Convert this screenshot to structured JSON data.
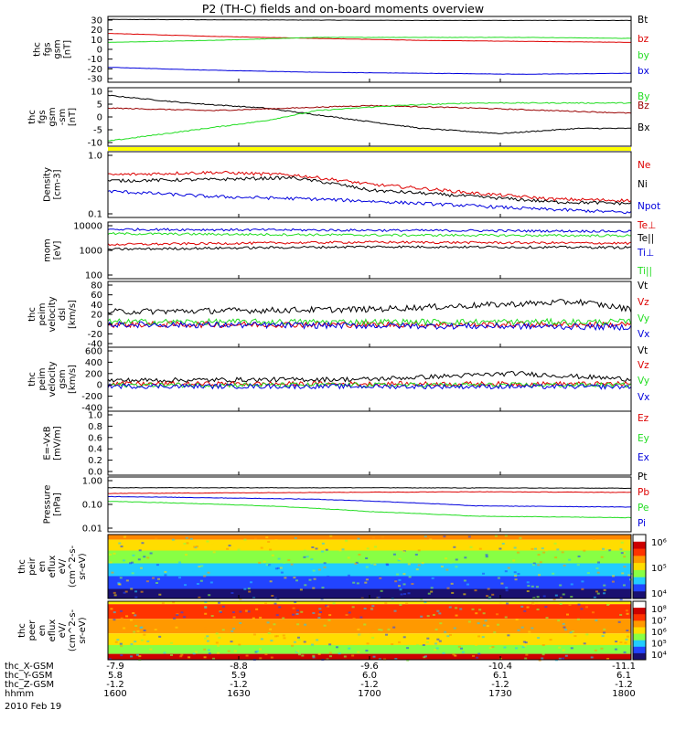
{
  "title": "P2 (TH-C) fields and on-board moments overview",
  "colors": {
    "black": "#000000",
    "red": "#dd0000",
    "green": "#22dd22",
    "blue": "#0000dd",
    "yellow": "#ffff00",
    "darkred": "#990000"
  },
  "chart_data": {
    "type": "line",
    "x_time_labels": [
      "1600",
      "1630",
      "1700",
      "1730",
      "1800"
    ],
    "panels": [
      {
        "id": "p1",
        "ylabel": [
          "thc",
          "fgs",
          "gsm",
          "[nT]"
        ],
        "yticks": [
          "30",
          "20",
          "10",
          "0",
          "-10",
          "-20",
          "-30"
        ],
        "ylim": [
          -33,
          33
        ],
        "legend": [
          {
            "text": "Bt",
            "color": "black"
          },
          {
            "text": "bz",
            "color": "red"
          },
          {
            "text": "by",
            "color": "green"
          },
          {
            "text": "bx",
            "color": "blue"
          }
        ],
        "series": [
          {
            "name": "Bt",
            "color": "black",
            "approx": [
              [
                0,
                30
              ],
              [
                0.3,
                29.5
              ],
              [
                0.6,
                29
              ],
              [
                1,
                29
              ]
            ]
          },
          {
            "name": "bz",
            "color": "red",
            "approx": [
              [
                0,
                16
              ],
              [
                0.2,
                13
              ],
              [
                0.4,
                11
              ],
              [
                0.6,
                9
              ],
              [
                0.8,
                8
              ],
              [
                1,
                7
              ]
            ]
          },
          {
            "name": "by",
            "color": "green",
            "approx": [
              [
                0,
                7
              ],
              [
                0.2,
                9
              ],
              [
                0.4,
                12
              ],
              [
                0.6,
                12
              ],
              [
                0.8,
                12
              ],
              [
                1,
                11
              ]
            ]
          },
          {
            "name": "bx",
            "color": "blue",
            "approx": [
              [
                0,
                -18
              ],
              [
                0.2,
                -21
              ],
              [
                0.4,
                -23
              ],
              [
                0.6,
                -24
              ],
              [
                0.8,
                -25
              ],
              [
                1,
                -24
              ]
            ]
          }
        ]
      },
      {
        "id": "p2",
        "ylabel": [
          "thc",
          "fgs",
          "gsm",
          "-sm",
          "[nT]"
        ],
        "yticks": [
          "10",
          "5",
          "0",
          "-5",
          "-10"
        ],
        "ylim": [
          -13,
          10
        ],
        "legend": [
          {
            "text": "By",
            "color": "green"
          },
          {
            "text": "Bz",
            "color": "darkred"
          },
          {
            "text": "Bx",
            "color": "black"
          }
        ],
        "series": [
          {
            "name": "Bx",
            "color": "black",
            "approx": [
              [
                0,
                7
              ],
              [
                0.15,
                4
              ],
              [
                0.3,
                2
              ],
              [
                0.45,
                -2
              ],
              [
                0.6,
                -6
              ],
              [
                0.75,
                -8
              ],
              [
                0.9,
                -6
              ],
              [
                1,
                -6
              ]
            ]
          },
          {
            "name": "Bz",
            "color": "darkred",
            "approx": [
              [
                0,
                2
              ],
              [
                0.2,
                1
              ],
              [
                0.35,
                2
              ],
              [
                0.5,
                3
              ],
              [
                0.7,
                2
              ],
              [
                0.85,
                1
              ],
              [
                1,
                0
              ]
            ]
          },
          {
            "name": "By",
            "color": "green",
            "approx": [
              [
                0,
                -11
              ],
              [
                0.15,
                -7
              ],
              [
                0.3,
                -3
              ],
              [
                0.4,
                1
              ],
              [
                0.55,
                3
              ],
              [
                0.7,
                4
              ],
              [
                0.85,
                4
              ],
              [
                1,
                4
              ]
            ]
          }
        ]
      },
      {
        "id": "p3",
        "ylabel": [
          "Density",
          "[cm-3]"
        ],
        "yticks": [
          "1.0",
          "0.1"
        ],
        "ylim": [
          0.1,
          1.2
        ],
        "scale": "log",
        "legend": [
          {
            "text": "Ne",
            "color": "red"
          },
          {
            "text": "Ni",
            "color": "black"
          },
          {
            "text": "Npot",
            "color": "blue"
          }
        ],
        "series": [
          {
            "name": "Ne",
            "color": "red",
            "approx": [
              [
                0,
                0.5
              ],
              [
                0.2,
                0.55
              ],
              [
                0.35,
                0.5
              ],
              [
                0.5,
                0.35
              ],
              [
                0.7,
                0.25
              ],
              [
                0.85,
                0.2
              ],
              [
                1,
                0.19
              ]
            ]
          },
          {
            "name": "Ni",
            "color": "black",
            "approx": [
              [
                0,
                0.4
              ],
              [
                0.2,
                0.42
              ],
              [
                0.35,
                0.45
              ],
              [
                0.5,
                0.28
              ],
              [
                0.7,
                0.22
              ],
              [
                0.85,
                0.18
              ],
              [
                1,
                0.17
              ]
            ]
          },
          {
            "name": "Npot",
            "color": "blue",
            "approx": [
              [
                0,
                0.27
              ],
              [
                0.2,
                0.22
              ],
              [
                0.4,
                0.2
              ],
              [
                0.6,
                0.17
              ],
              [
                0.8,
                0.14
              ],
              [
                1,
                0.12
              ]
            ]
          }
        ]
      },
      {
        "id": "p4",
        "ylabel": [
          "mom",
          "[eV]"
        ],
        "yticks": [
          "10000",
          "1000",
          "100"
        ],
        "ylim": [
          100,
          12000
        ],
        "scale": "log",
        "legend": [
          {
            "text": "Te⊥",
            "color": "red"
          },
          {
            "text": "Te||",
            "color": "black"
          },
          {
            "text": "Ti⊥",
            "color": "blue"
          },
          {
            "text": "Ti||",
            "color": "green"
          }
        ],
        "series": [
          {
            "name": "Ti⊥",
            "color": "blue",
            "approx": [
              [
                0,
                6500
              ],
              [
                0.5,
                6000
              ],
              [
                1,
                5500
              ]
            ]
          },
          {
            "name": "Ti||",
            "color": "green",
            "approx": [
              [
                0,
                4500
              ],
              [
                0.5,
                4000
              ],
              [
                1,
                3800
              ]
            ]
          },
          {
            "name": "Te⊥",
            "color": "red",
            "approx": [
              [
                0,
                1800
              ],
              [
                0.5,
                2200
              ],
              [
                1,
                2000
              ]
            ]
          },
          {
            "name": "Te||",
            "color": "black",
            "approx": [
              [
                0,
                1200
              ],
              [
                0.5,
                1500
              ],
              [
                1,
                1400
              ]
            ]
          }
        ]
      },
      {
        "id": "p5",
        "ylabel": [
          "thc",
          "peim",
          "velocity",
          "dsl",
          "[km/s]"
        ],
        "yticks": [
          "80",
          "60",
          "40",
          "20",
          "0",
          "-20",
          "-40"
        ],
        "ylim": [
          -45,
          85
        ],
        "legend": [
          {
            "text": "Vt",
            "color": "black"
          },
          {
            "text": "Vz",
            "color": "red"
          },
          {
            "text": "Vy",
            "color": "green"
          },
          {
            "text": "Vx",
            "color": "blue"
          }
        ],
        "series": [
          {
            "name": "Vt",
            "color": "black",
            "approx": [
              [
                0,
                25
              ],
              [
                0.5,
                30
              ],
              [
                0.9,
                45
              ],
              [
                1,
                30
              ]
            ]
          },
          {
            "name": "Vz",
            "color": "red",
            "approx": [
              [
                0,
                0
              ],
              [
                1,
                0
              ]
            ]
          },
          {
            "name": "Vy",
            "color": "green",
            "approx": [
              [
                0,
                5
              ],
              [
                1,
                5
              ]
            ]
          },
          {
            "name": "Vx",
            "color": "blue",
            "approx": [
              [
                0,
                0
              ],
              [
                1,
                -5
              ]
            ]
          }
        ]
      },
      {
        "id": "p6",
        "ylabel": [
          "thc",
          "peim",
          "velocity",
          "gsm",
          "[km/s]"
        ],
        "yticks": [
          "600",
          "400",
          "200",
          "0",
          "-200",
          "-400"
        ],
        "ylim": [
          -450,
          650
        ],
        "legend": [
          {
            "text": "Vt",
            "color": "black"
          },
          {
            "text": "Vz",
            "color": "red"
          },
          {
            "text": "Vy",
            "color": "green"
          },
          {
            "text": "Vx",
            "color": "blue"
          }
        ],
        "series": [
          {
            "name": "Vt",
            "color": "black",
            "approx": [
              [
                0,
                80
              ],
              [
                0.5,
                100
              ],
              [
                0.78,
                200
              ],
              [
                1,
                100
              ]
            ]
          },
          {
            "name": "Vz",
            "color": "red",
            "approx": [
              [
                0,
                20
              ],
              [
                1,
                20
              ]
            ]
          },
          {
            "name": "Vy",
            "color": "green",
            "approx": [
              [
                0,
                0
              ],
              [
                1,
                0
              ]
            ]
          },
          {
            "name": "Vx",
            "color": "blue",
            "approx": [
              [
                0,
                -20
              ],
              [
                1,
                -30
              ]
            ]
          }
        ]
      },
      {
        "id": "p7",
        "ylabel": [
          "E=-VxB",
          "[mV/m]"
        ],
        "yticks": [
          "1.0",
          "0.8",
          "0.6",
          "0.4",
          "0.2",
          "0.0"
        ],
        "ylim": [
          0,
          1
        ],
        "legend": [
          {
            "text": "Ez",
            "color": "red"
          },
          {
            "text": "Ey",
            "color": "green"
          },
          {
            "text": "Ex",
            "color": "blue"
          }
        ],
        "series": []
      },
      {
        "id": "p8",
        "ylabel": [
          "Pressure",
          "[nPa]"
        ],
        "yticks": [
          "1.00",
          "0.10",
          "0.01"
        ],
        "ylim": [
          0.01,
          1.3
        ],
        "scale": "log",
        "legend": [
          {
            "text": "Pt",
            "color": "black"
          },
          {
            "text": "Pb",
            "color": "red"
          },
          {
            "text": "Pe",
            "color": "green"
          },
          {
            "text": "Pi",
            "color": "blue"
          }
        ],
        "series": [
          {
            "name": "Pt",
            "color": "black",
            "approx": [
              [
                0,
                0.5
              ],
              [
                0.5,
                0.5
              ],
              [
                1,
                0.48
              ]
            ]
          },
          {
            "name": "Pb",
            "color": "red",
            "approx": [
              [
                0,
                0.3
              ],
              [
                0.4,
                0.33
              ],
              [
                0.7,
                0.35
              ],
              [
                1,
                0.33
              ]
            ]
          },
          {
            "name": "Pi",
            "color": "blue",
            "approx": [
              [
                0,
                0.23
              ],
              [
                0.4,
                0.18
              ],
              [
                0.7,
                0.1
              ],
              [
                1,
                0.09
              ]
            ]
          },
          {
            "name": "Pe",
            "color": "green",
            "approx": [
              [
                0,
                0.15
              ],
              [
                0.3,
                0.1
              ],
              [
                0.5,
                0.06
              ],
              [
                0.7,
                0.04
              ],
              [
                1,
                0.035
              ]
            ]
          }
        ]
      },
      {
        "id": "p9",
        "type": "spectrogram",
        "ylabel": [
          "thc",
          "peir",
          "en",
          "eflux",
          "eV/",
          "(cm^2-s-",
          "sr-eV)"
        ],
        "yticks": [
          "10000",
          "1000",
          "100",
          "10"
        ],
        "colorbar_ticks": [
          "10⁶",
          "10⁵",
          "10⁴"
        ]
      },
      {
        "id": "p10",
        "type": "spectrogram",
        "ylabel": [
          "thc",
          "peer",
          "en",
          "eflux",
          "eV/",
          "(cm^2-s-",
          "sr-eV)"
        ],
        "yticks": [
          "10000",
          "1000",
          "100",
          "10"
        ],
        "colorbar_ticks": [
          "10⁸",
          "10⁷",
          "10⁶",
          "10⁵",
          "10⁴"
        ]
      }
    ],
    "footer": {
      "rows": [
        {
          "label": "thc_X-GSM",
          "values": [
            "-7.9",
            "-8.8",
            "-9.6",
            "-10.4",
            "-11.1"
          ]
        },
        {
          "label": "thc_Y-GSM",
          "values": [
            "5.8",
            "5.9",
            "6.0",
            "6.1",
            "6.1"
          ]
        },
        {
          "label": "thc_Z-GSM",
          "values": [
            "-1.2",
            "-1.2",
            "-1.2",
            "-1.2",
            "-1.2"
          ]
        },
        {
          "label": "hhmm",
          "values": [
            "1600",
            "1630",
            "1700",
            "1730",
            "1800"
          ]
        }
      ],
      "date": "2010 Feb 19"
    }
  }
}
